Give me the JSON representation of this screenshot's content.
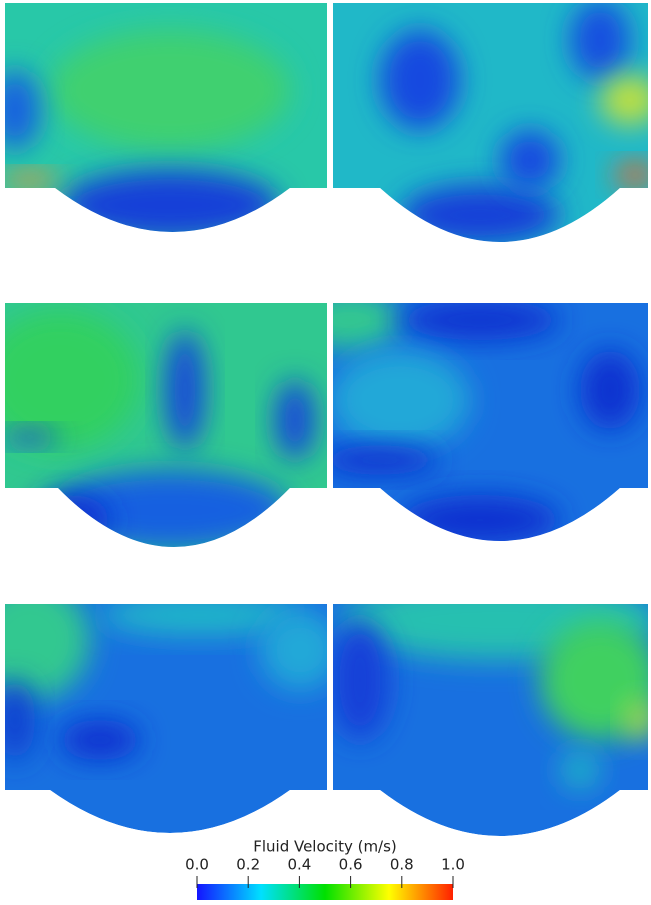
{
  "colorbar": {
    "title": "Fluid Velocity (m/s)",
    "range": [
      0,
      1
    ],
    "ticks": [
      {
        "value": 0,
        "label": "0.0"
      },
      {
        "value": 0.2,
        "label": "0.2"
      },
      {
        "value": 0.4,
        "label": "0.4"
      },
      {
        "value": 0.6,
        "label": "0.6"
      },
      {
        "value": 0.8,
        "label": "0.8"
      },
      {
        "value": 1,
        "label": "1.0"
      }
    ],
    "colormap": [
      "#1414ff",
      "#00e0ff",
      "#00e000",
      "#ffff00",
      "#ff2000"
    ]
  }
}
